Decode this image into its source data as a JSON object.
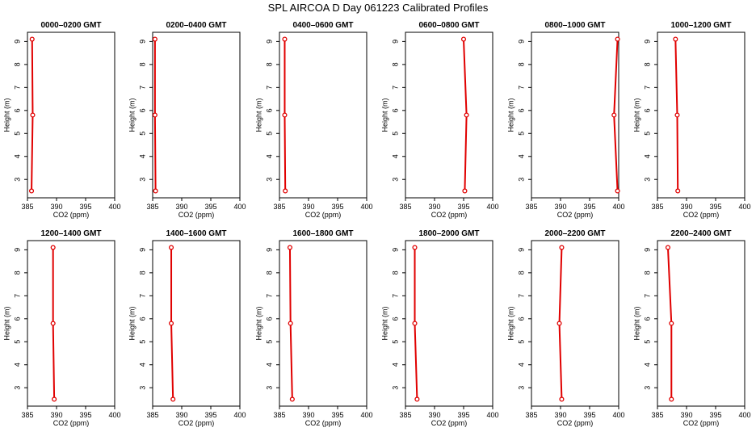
{
  "title": "SPL AIRCOA D  Day 061223  Calibrated Profiles",
  "colors": {
    "series": "#e00000",
    "axes": "#000000",
    "background": "#ffffff"
  },
  "chart_data": [
    {
      "type": "line",
      "title": "0000–0200 GMT",
      "xlabel": "CO2 (ppm)",
      "ylabel": "Height (m)",
      "xlim": [
        385,
        400
      ],
      "ylim": [
        2.2,
        9.4
      ],
      "xticks": [
        "385",
        "390",
        "395",
        "400"
      ],
      "yticks": [
        "3",
        "4",
        "5",
        "6",
        "7",
        "8",
        "9"
      ],
      "grid": false,
      "x": [
        385.7,
        385.9,
        385.8
      ],
      "y": [
        2.5,
        5.8,
        9.1
      ]
    },
    {
      "type": "line",
      "title": "0200–0400 GMT",
      "xlabel": "CO2 (ppm)",
      "ylabel": "Height (m)",
      "xlim": [
        385,
        400
      ],
      "ylim": [
        2.2,
        9.4
      ],
      "xticks": [
        "385",
        "390",
        "395",
        "400"
      ],
      "yticks": [
        "3",
        "4",
        "5",
        "6",
        "7",
        "8",
        "9"
      ],
      "grid": false,
      "x": [
        385.5,
        385.4,
        385.4
      ],
      "y": [
        2.5,
        5.8,
        9.1
      ]
    },
    {
      "type": "line",
      "title": "0400–0600 GMT",
      "xlabel": "CO2 (ppm)",
      "ylabel": "Height (m)",
      "xlim": [
        385,
        400
      ],
      "ylim": [
        2.2,
        9.4
      ],
      "xticks": [
        "385",
        "390",
        "395",
        "400"
      ],
      "yticks": [
        "3",
        "4",
        "5",
        "6",
        "7",
        "8",
        "9"
      ],
      "grid": false,
      "x": [
        386.0,
        385.9,
        385.9
      ],
      "y": [
        2.5,
        5.8,
        9.1
      ]
    },
    {
      "type": "line",
      "title": "0600–0800 GMT",
      "xlabel": "CO2 (ppm)",
      "ylabel": "Height (m)",
      "xlim": [
        385,
        400
      ],
      "ylim": [
        2.2,
        9.4
      ],
      "xticks": [
        "385",
        "390",
        "395",
        "400"
      ],
      "yticks": [
        "3",
        "4",
        "5",
        "6",
        "7",
        "8",
        "9"
      ],
      "grid": false,
      "x": [
        395.2,
        395.5,
        395.0
      ],
      "y": [
        2.5,
        5.8,
        9.1
      ]
    },
    {
      "type": "line",
      "title": "0800–1000 GMT",
      "xlabel": "CO2 (ppm)",
      "ylabel": "Height (m)",
      "xlim": [
        385,
        400
      ],
      "ylim": [
        2.2,
        9.4
      ],
      "xticks": [
        "385",
        "390",
        "395",
        "400"
      ],
      "yticks": [
        "3",
        "4",
        "5",
        "6",
        "7",
        "8",
        "9"
      ],
      "grid": false,
      "x": [
        399.8,
        399.2,
        399.8
      ],
      "y": [
        2.5,
        5.8,
        9.1
      ]
    },
    {
      "type": "line",
      "title": "1000–1200 GMT",
      "xlabel": "CO2 (ppm)",
      "ylabel": "Height (m)",
      "xlim": [
        385,
        400
      ],
      "ylim": [
        2.2,
        9.4
      ],
      "xticks": [
        "385",
        "390",
        "395",
        "400"
      ],
      "yticks": [
        "3",
        "4",
        "5",
        "6",
        "7",
        "8",
        "9"
      ],
      "grid": false,
      "x": [
        388.5,
        388.4,
        388.1
      ],
      "y": [
        2.5,
        5.8,
        9.1
      ]
    },
    {
      "type": "line",
      "title": "1200–1400 GMT",
      "xlabel": "CO2 (ppm)",
      "ylabel": "Height (m)",
      "xlim": [
        385,
        400
      ],
      "ylim": [
        2.2,
        9.4
      ],
      "xticks": [
        "385",
        "390",
        "395",
        "400"
      ],
      "yticks": [
        "3",
        "4",
        "5",
        "6",
        "7",
        "8",
        "9"
      ],
      "grid": false,
      "x": [
        389.6,
        389.4,
        389.4
      ],
      "y": [
        2.5,
        5.8,
        9.1
      ]
    },
    {
      "type": "line",
      "title": "1400–1600 GMT",
      "xlabel": "CO2 (ppm)",
      "ylabel": "Height (m)",
      "xlim": [
        385,
        400
      ],
      "ylim": [
        2.2,
        9.4
      ],
      "xticks": [
        "385",
        "390",
        "395",
        "400"
      ],
      "yticks": [
        "3",
        "4",
        "5",
        "6",
        "7",
        "8",
        "9"
      ],
      "grid": false,
      "x": [
        388.5,
        388.2,
        388.2
      ],
      "y": [
        2.5,
        5.8,
        9.1
      ]
    },
    {
      "type": "line",
      "title": "1600–1800 GMT",
      "xlabel": "CO2 (ppm)",
      "ylabel": "Height (m)",
      "xlim": [
        385,
        400
      ],
      "ylim": [
        2.2,
        9.4
      ],
      "xticks": [
        "385",
        "390",
        "395",
        "400"
      ],
      "yticks": [
        "3",
        "4",
        "5",
        "6",
        "7",
        "8",
        "9"
      ],
      "grid": false,
      "x": [
        387.2,
        386.9,
        386.8
      ],
      "y": [
        2.5,
        5.8,
        9.1
      ]
    },
    {
      "type": "line",
      "title": "1800–2000 GMT",
      "xlabel": "CO2 (ppm)",
      "ylabel": "Height (m)",
      "xlim": [
        385,
        400
      ],
      "ylim": [
        2.2,
        9.4
      ],
      "xticks": [
        "385",
        "390",
        "395",
        "400"
      ],
      "yticks": [
        "3",
        "4",
        "5",
        "6",
        "7",
        "8",
        "9"
      ],
      "grid": false,
      "x": [
        387.0,
        386.6,
        386.6
      ],
      "y": [
        2.5,
        5.8,
        9.1
      ]
    },
    {
      "type": "line",
      "title": "2000–2200 GMT",
      "xlabel": "CO2 (ppm)",
      "ylabel": "Height (m)",
      "xlim": [
        385,
        400
      ],
      "ylim": [
        2.2,
        9.4
      ],
      "xticks": [
        "385",
        "390",
        "395",
        "400"
      ],
      "yticks": [
        "3",
        "4",
        "5",
        "6",
        "7",
        "8",
        "9"
      ],
      "grid": false,
      "x": [
        390.2,
        389.8,
        390.2
      ],
      "y": [
        2.5,
        5.8,
        9.1
      ]
    },
    {
      "type": "line",
      "title": "2200–2400 GMT",
      "xlabel": "CO2 (ppm)",
      "ylabel": "Height (m)",
      "xlim": [
        385,
        400
      ],
      "ylim": [
        2.2,
        9.4
      ],
      "xticks": [
        "385",
        "390",
        "395",
        "400"
      ],
      "yticks": [
        "3",
        "4",
        "5",
        "6",
        "7",
        "8",
        "9"
      ],
      "grid": false,
      "x": [
        387.4,
        387.4,
        386.8
      ],
      "y": [
        2.5,
        5.8,
        9.1
      ]
    }
  ]
}
